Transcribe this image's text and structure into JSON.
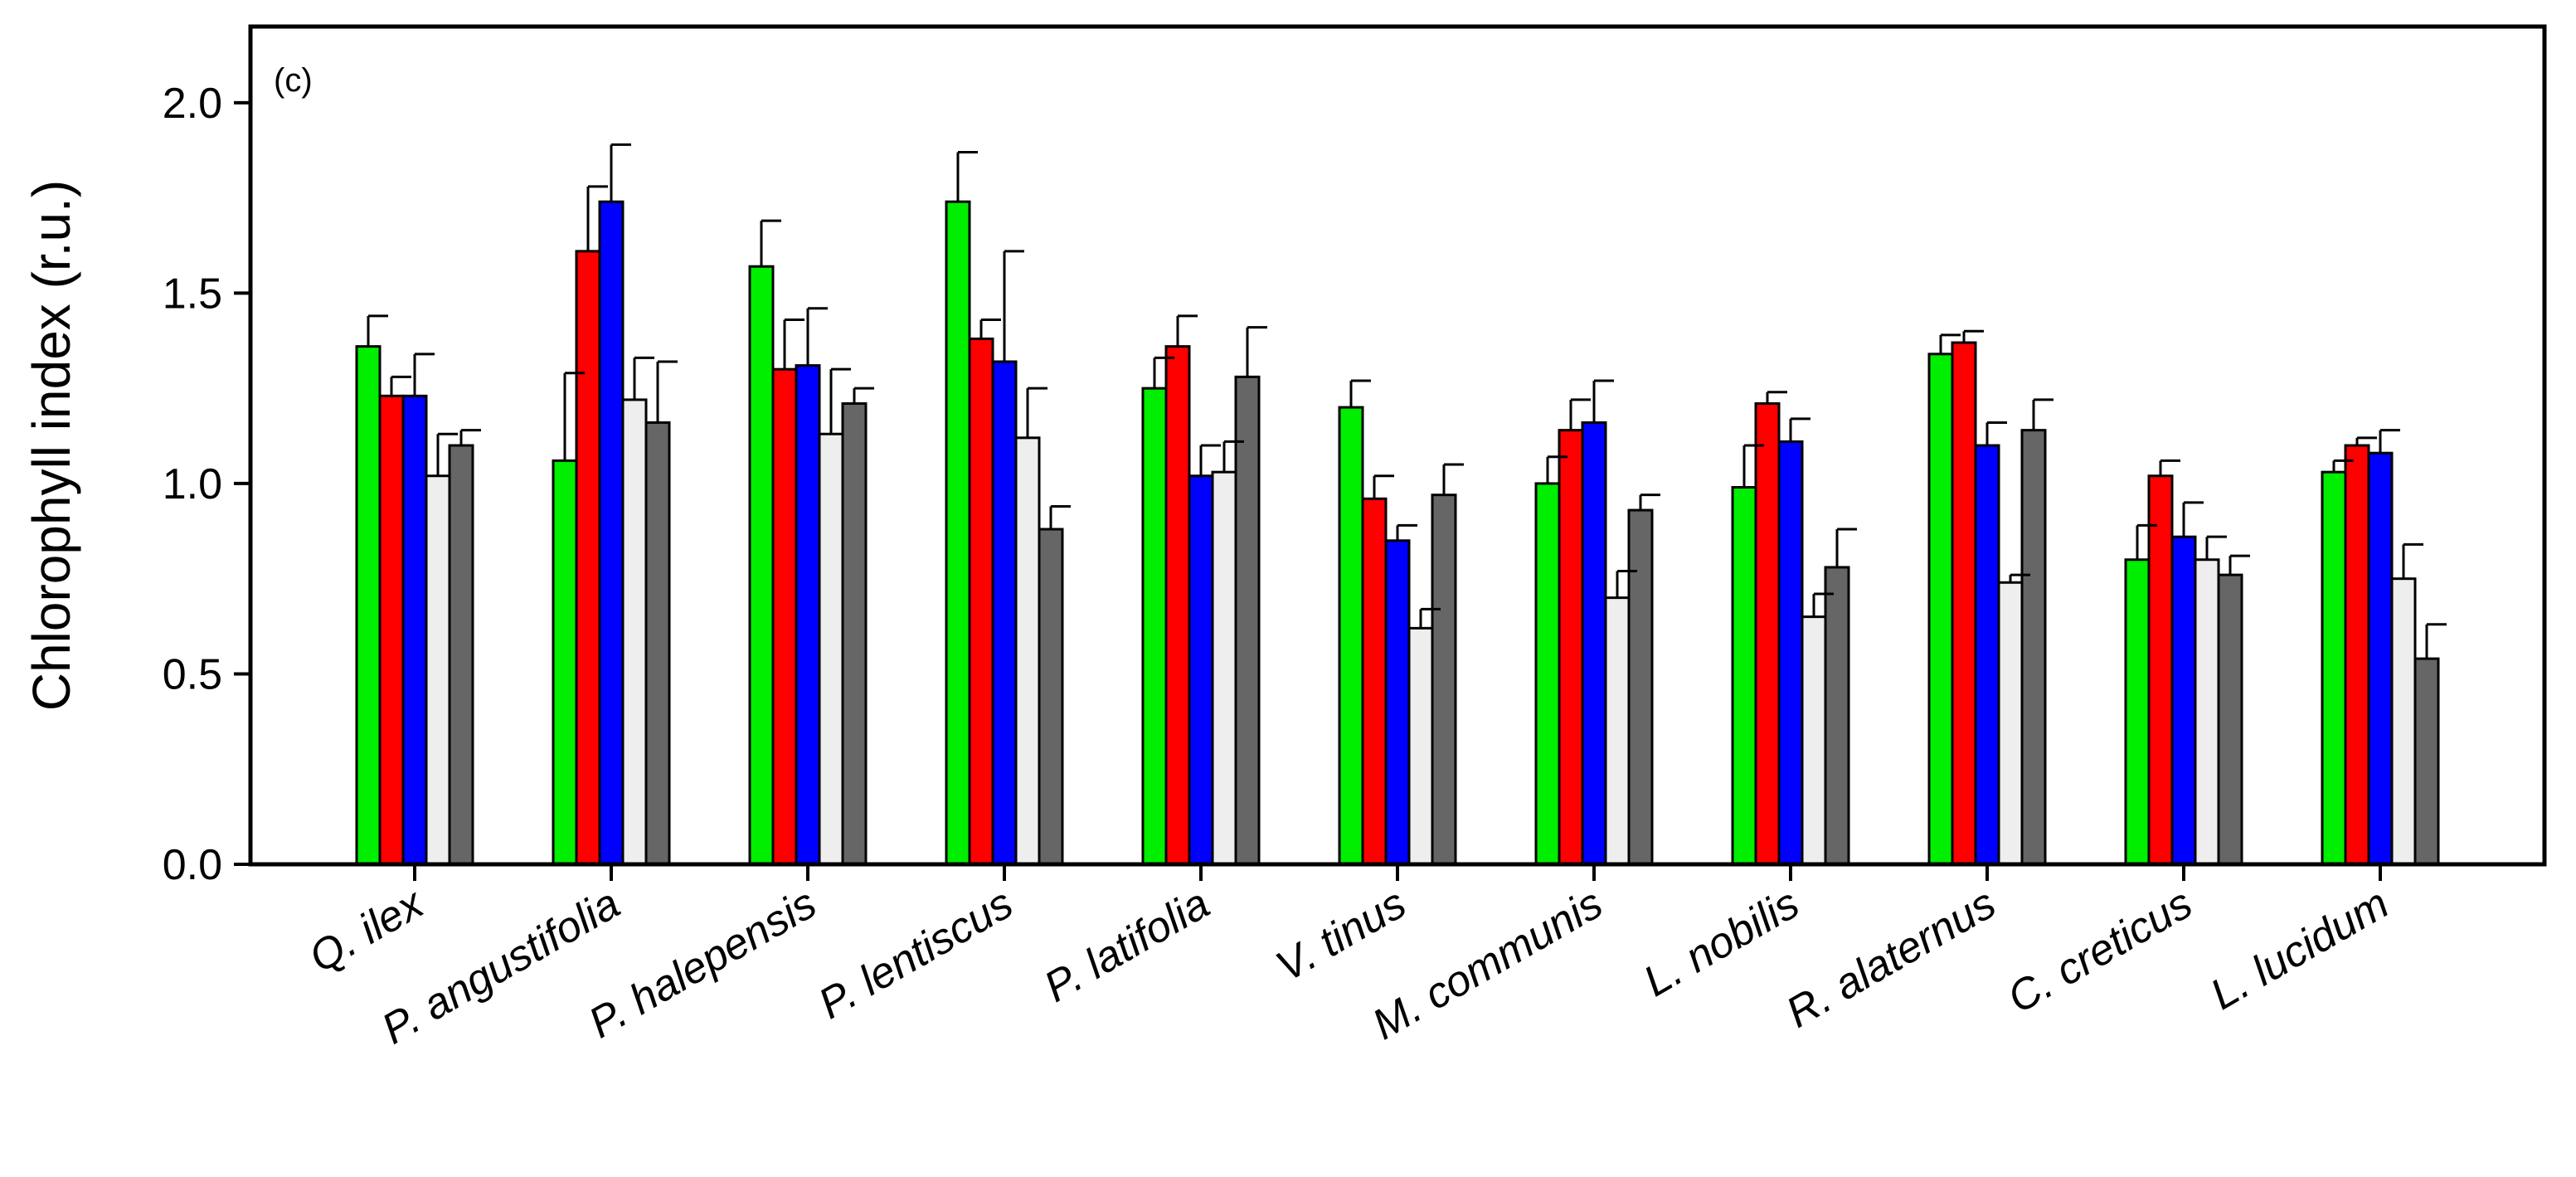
{
  "chart_data": {
    "type": "bar",
    "panel_label": "(c)",
    "title": "",
    "xlabel": "",
    "ylabel": "Chlorophyll index (r.u.)",
    "ylim": [
      0,
      2.2
    ],
    "yticks": [
      0.0,
      0.5,
      1.0,
      1.5,
      2.0
    ],
    "ytick_labels": [
      "0.0",
      "0.5",
      "1.0",
      "1.5",
      "2.0"
    ],
    "grid": false,
    "legend": "none",
    "categories": [
      "Q. ilex",
      "P. angustifolia",
      "P. halepensis",
      "P. lentiscus",
      "P. latifolia",
      "V. tinus",
      "M. communis",
      "L. nobilis",
      "R. alaternus",
      "C. creticus",
      "L. lucidum"
    ],
    "series": [
      {
        "name": "series 1",
        "color": "#00ee00",
        "values": [
          1.36,
          1.06,
          1.57,
          1.74,
          1.25,
          1.2,
          1.0,
          0.99,
          1.34,
          0.8,
          1.03
        ],
        "errors": [
          0.08,
          0.23,
          0.12,
          0.13,
          0.08,
          0.07,
          0.07,
          0.11,
          0.05,
          0.09,
          0.03
        ]
      },
      {
        "name": "series 2",
        "color": "#ff0000",
        "values": [
          1.23,
          1.61,
          1.3,
          1.38,
          1.36,
          0.96,
          1.14,
          1.21,
          1.37,
          1.02,
          1.1
        ],
        "errors": [
          0.05,
          0.17,
          0.13,
          0.05,
          0.08,
          0.06,
          0.08,
          0.03,
          0.03,
          0.04,
          0.02
        ]
      },
      {
        "name": "series 3",
        "color": "#0000ff",
        "values": [
          1.23,
          1.74,
          1.31,
          1.32,
          1.02,
          0.85,
          1.16,
          1.11,
          1.1,
          0.86,
          1.08
        ],
        "errors": [
          0.11,
          0.15,
          0.15,
          0.29,
          0.08,
          0.04,
          0.11,
          0.06,
          0.06,
          0.09,
          0.06
        ]
      },
      {
        "name": "series 4",
        "color": "#eeeeee",
        "values": [
          1.02,
          1.22,
          1.13,
          1.12,
          1.03,
          0.62,
          0.7,
          0.65,
          0.74,
          0.8,
          0.75
        ],
        "errors": [
          0.11,
          0.11,
          0.17,
          0.13,
          0.08,
          0.05,
          0.07,
          0.06,
          0.02,
          0.06,
          0.09
        ]
      },
      {
        "name": "series 5",
        "color": "#666666",
        "values": [
          1.1,
          1.16,
          1.21,
          0.88,
          1.28,
          0.97,
          0.93,
          0.78,
          1.14,
          0.76,
          0.54
        ],
        "errors": [
          0.04,
          0.16,
          0.04,
          0.06,
          0.13,
          0.08,
          0.04,
          0.1,
          0.08,
          0.05,
          0.09
        ]
      }
    ]
  }
}
